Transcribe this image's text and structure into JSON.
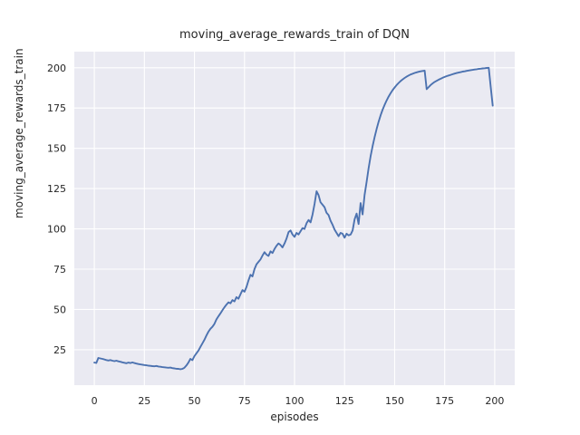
{
  "chart_data": {
    "type": "line",
    "title": "moving_average_rewards_train of DQN",
    "xlabel": "episodes",
    "ylabel": "moving_average_rewards_train",
    "xlim": [
      -10,
      210
    ],
    "ylim": [
      3,
      210
    ],
    "x_ticks": [
      0,
      25,
      50,
      75,
      100,
      125,
      150,
      175,
      200
    ],
    "y_ticks": [
      25,
      50,
      75,
      100,
      125,
      150,
      175,
      200
    ],
    "grid": true,
    "legend": false,
    "colors": {
      "line": "#4C72B0",
      "axes_background": "#EAEAF2",
      "grid": "#FFFFFF",
      "figure_background": "#FFFFFF",
      "text": "#262626"
    },
    "series": [
      {
        "name": "DQN",
        "x": [
          0,
          1,
          2,
          3,
          4,
          5,
          6,
          7,
          8,
          9,
          10,
          11,
          12,
          13,
          14,
          15,
          16,
          17,
          18,
          19,
          20,
          21,
          22,
          23,
          24,
          25,
          26,
          27,
          28,
          29,
          30,
          31,
          32,
          33,
          34,
          35,
          36,
          37,
          38,
          39,
          40,
          41,
          42,
          43,
          44,
          45,
          46,
          47,
          48,
          49,
          50,
          51,
          52,
          53,
          54,
          55,
          56,
          57,
          58,
          59,
          60,
          61,
          62,
          63,
          64,
          65,
          66,
          67,
          68,
          69,
          70,
          71,
          72,
          73,
          74,
          75,
          76,
          77,
          78,
          79,
          80,
          81,
          82,
          83,
          84,
          85,
          86,
          87,
          88,
          89,
          90,
          91,
          92,
          93,
          94,
          95,
          96,
          97,
          98,
          99,
          100,
          101,
          102,
          103,
          104,
          105,
          106,
          107,
          108,
          109,
          110,
          111,
          112,
          113,
          114,
          115,
          116,
          117,
          118,
          119,
          120,
          121,
          122,
          123,
          124,
          125,
          126,
          127,
          128,
          129,
          130,
          131,
          132,
          133,
          134,
          135,
          136,
          137,
          138,
          139,
          140,
          141,
          142,
          143,
          144,
          145,
          146,
          147,
          148,
          149,
          150,
          151,
          152,
          153,
          154,
          155,
          156,
          157,
          158,
          159,
          160,
          161,
          162,
          163,
          164,
          165,
          166,
          167,
          168,
          169,
          170,
          171,
          172,
          173,
          174,
          175,
          176,
          177,
          178,
          179,
          180,
          181,
          182,
          183,
          184,
          185,
          186,
          187,
          188,
          189,
          190,
          191,
          192,
          193,
          194,
          195,
          196,
          197,
          198,
          199
        ],
        "y": [
          17.0,
          16.8,
          19.9,
          19.6,
          19.3,
          19.0,
          18.6,
          18.3,
          18.6,
          18.2,
          17.9,
          18.2,
          17.8,
          17.5,
          17.2,
          16.9,
          16.6,
          17.0,
          16.7,
          17.1,
          16.7,
          16.4,
          16.1,
          15.9,
          15.7,
          15.5,
          15.3,
          15.1,
          15.0,
          14.8,
          14.7,
          14.9,
          14.6,
          14.4,
          14.2,
          14.1,
          13.9,
          13.8,
          13.9,
          13.6,
          13.4,
          13.2,
          13.1,
          12.9,
          13.1,
          13.8,
          15.2,
          17.0,
          19.3,
          18.5,
          21.0,
          22.8,
          24.5,
          26.8,
          29.0,
          31.2,
          33.8,
          36.2,
          38.0,
          39.2,
          41.0,
          43.8,
          45.8,
          47.6,
          49.6,
          51.4,
          53.0,
          54.4,
          53.8,
          55.8,
          55.0,
          57.6,
          56.6,
          59.5,
          62.0,
          61.0,
          64.0,
          68.0,
          71.5,
          70.5,
          75.0,
          78.0,
          79.5,
          81.0,
          83.5,
          85.5,
          84.0,
          83.2,
          86.0,
          85.0,
          87.5,
          89.5,
          91.0,
          90.0,
          88.5,
          91.0,
          94.0,
          98.0,
          99.0,
          96.5,
          95.0,
          97.5,
          96.5,
          98.5,
          100.5,
          100.0,
          103.5,
          105.5,
          104.0,
          109.0,
          115.5,
          123.3,
          121.0,
          116.5,
          115.0,
          113.5,
          110.0,
          108.5,
          105.0,
          102.5,
          99.5,
          97.5,
          95.5,
          97.5,
          97.0,
          94.5,
          97.0,
          96.0,
          96.5,
          99.0,
          106.0,
          109.5,
          103.0,
          116.0,
          109.0,
          121.0,
          129.0,
          137.5,
          145.0,
          151.5,
          157.0,
          162.0,
          166.5,
          170.5,
          174.0,
          177.0,
          179.7,
          182.1,
          184.2,
          186.1,
          187.8,
          189.3,
          190.6,
          191.8,
          192.8,
          193.7,
          194.5,
          195.2,
          195.8,
          196.3,
          196.8,
          197.2,
          197.5,
          197.8,
          198.0,
          198.2,
          186.7,
          188.0,
          189.3,
          190.3,
          191.2,
          191.9,
          192.6,
          193.2,
          193.8,
          194.3,
          194.8,
          195.2,
          195.6,
          196.0,
          196.4,
          196.7,
          197.0,
          197.3,
          197.6,
          197.8,
          198.1,
          198.3,
          198.5,
          198.7,
          198.9,
          199.1,
          199.3,
          199.4,
          199.6,
          199.7,
          199.9,
          200.0,
          188.0,
          176.5
        ]
      }
    ]
  }
}
